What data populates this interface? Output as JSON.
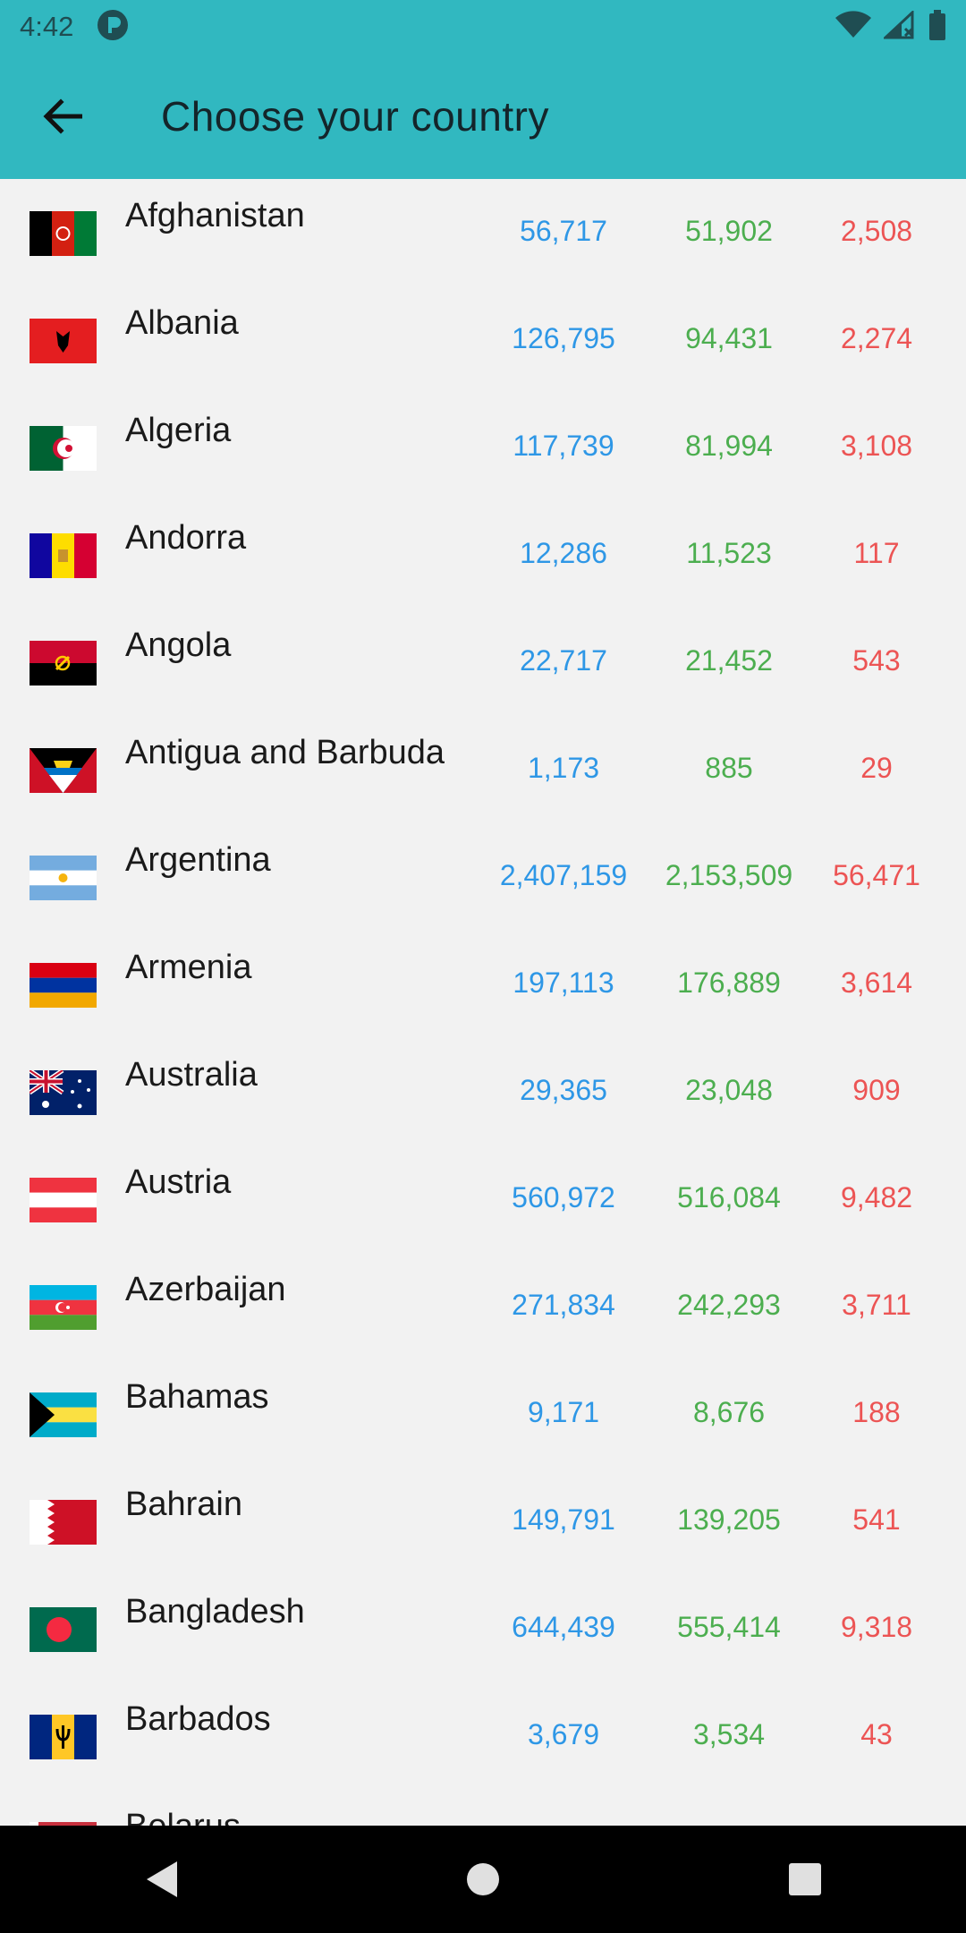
{
  "status_bar": {
    "time": "4:42"
  },
  "app_bar": {
    "title": "Choose your country"
  },
  "countries": [
    {
      "name": "Afghanistan",
      "cases": "56,717",
      "recovered": "51,902",
      "deaths": "2,508",
      "flag": "afghanistan-flag"
    },
    {
      "name": "Albania",
      "cases": "126,795",
      "recovered": "94,431",
      "deaths": "2,274",
      "flag": "albania-flag"
    },
    {
      "name": "Algeria",
      "cases": "117,739",
      "recovered": "81,994",
      "deaths": "3,108",
      "flag": "algeria-flag"
    },
    {
      "name": "Andorra",
      "cases": "12,286",
      "recovered": "11,523",
      "deaths": "117",
      "flag": "andorra-flag"
    },
    {
      "name": "Angola",
      "cases": "22,717",
      "recovered": "21,452",
      "deaths": "543",
      "flag": "angola-flag"
    },
    {
      "name": "Antigua and Barbuda",
      "cases": "1,173",
      "recovered": "885",
      "deaths": "29",
      "flag": "antigua-flag"
    },
    {
      "name": "Argentina",
      "cases": "2,407,159",
      "recovered": "2,153,509",
      "deaths": "56,471",
      "flag": "argentina-flag"
    },
    {
      "name": "Armenia",
      "cases": "197,113",
      "recovered": "176,889",
      "deaths": "3,614",
      "flag": "armenia-flag"
    },
    {
      "name": "Australia",
      "cases": "29,365",
      "recovered": "23,048",
      "deaths": "909",
      "flag": "australia-flag"
    },
    {
      "name": "Austria",
      "cases": "560,972",
      "recovered": "516,084",
      "deaths": "9,482",
      "flag": "austria-flag"
    },
    {
      "name": "Azerbaijan",
      "cases": "271,834",
      "recovered": "242,293",
      "deaths": "3,711",
      "flag": "azerbaijan-flag"
    },
    {
      "name": "Bahamas",
      "cases": "9,171",
      "recovered": "8,676",
      "deaths": "188",
      "flag": "bahamas-flag"
    },
    {
      "name": "Bahrain",
      "cases": "149,791",
      "recovered": "139,205",
      "deaths": "541",
      "flag": "bahrain-flag"
    },
    {
      "name": "Bangladesh",
      "cases": "644,439",
      "recovered": "555,414",
      "deaths": "9,318",
      "flag": "bangladesh-flag"
    },
    {
      "name": "Barbados",
      "cases": "3,679",
      "recovered": "3,534",
      "deaths": "43",
      "flag": "barbados-flag"
    },
    {
      "name": "Belarus",
      "cases": "",
      "recovered": "",
      "deaths": "",
      "flag": "belarus-flag"
    }
  ],
  "colors": {
    "primary": "#31b8c0",
    "cases": "#2e97e6",
    "recovered": "#4cae4f",
    "deaths": "#ec5454"
  },
  "nav_bar": {
    "back": "back-triangle-icon",
    "home": "home-circle-icon",
    "recents": "recents-square-icon"
  }
}
